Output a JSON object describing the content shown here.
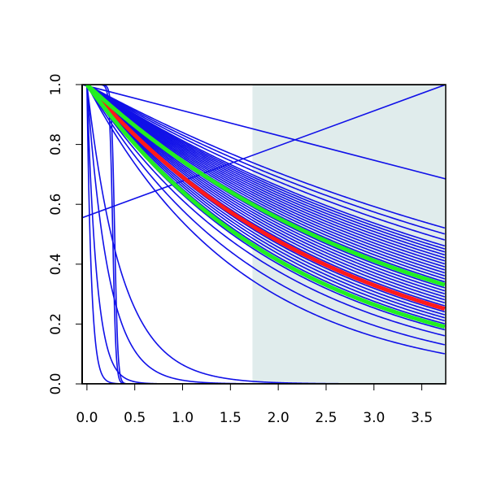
{
  "chart_data": {
    "type": "line",
    "title": "",
    "xlabel": "",
    "ylabel": "",
    "xlim": [
      -0.05,
      3.75
    ],
    "ylim": [
      0.0,
      1.0
    ],
    "x_ticks": [
      {
        "value": 0.0,
        "label": "0.0"
      },
      {
        "value": 0.5,
        "label": "0.5"
      },
      {
        "value": 1.0,
        "label": "1.0"
      },
      {
        "value": 1.5,
        "label": "1.5"
      },
      {
        "value": 2.0,
        "label": "2.0"
      },
      {
        "value": 2.5,
        "label": "2.5"
      },
      {
        "value": 3.0,
        "label": "3.0"
      },
      {
        "value": 3.5,
        "label": "3.5"
      }
    ],
    "y_ticks": [
      {
        "value": 0.0,
        "label": "0.0"
      },
      {
        "value": 0.2,
        "label": "0.2"
      },
      {
        "value": 0.4,
        "label": "0.4"
      },
      {
        "value": 0.6,
        "label": "0.6"
      },
      {
        "value": 0.8,
        "label": "0.8"
      },
      {
        "value": 1.0,
        "label": "1.0"
      }
    ],
    "shaded_region": {
      "x_start": 1.73,
      "x_end": 3.75,
      "color": "#e0ecec"
    },
    "grid": false,
    "legend": "none",
    "colors": {
      "ensemble": "#1010e8",
      "median": "#ff1a1a",
      "bounds": "#22ee22"
    },
    "ensemble_exponential_end_values": [
      0.1,
      0.13,
      0.16,
      0.18,
      0.19,
      0.2,
      0.21,
      0.22,
      0.23,
      0.24,
      0.25,
      0.26,
      0.27,
      0.28,
      0.29,
      0.3,
      0.31,
      0.32,
      0.33,
      0.34,
      0.35,
      0.36,
      0.37,
      0.38,
      0.39,
      0.4,
      0.41,
      0.42,
      0.43,
      0.44,
      0.45,
      0.46,
      0.48,
      0.5,
      0.52
    ],
    "ensemble_fast_decay_rates": [
      40,
      18,
      8,
      5
    ],
    "ensemble_step_drops": [
      0.25,
      0.27
    ],
    "ensemble_straight_lines": [
      {
        "name": "declining",
        "x": [
          -0.05,
          3.75
        ],
        "y": [
          1.0,
          0.685
        ]
      },
      {
        "name": "rising",
        "x": [
          -0.05,
          3.75
        ],
        "y": [
          0.555,
          1.0
        ]
      },
      {
        "name": "flat-top",
        "x": [
          -0.05,
          3.75
        ],
        "y": [
          1.0,
          1.0
        ]
      },
      {
        "name": "flat-bottom",
        "x": [
          -0.05,
          3.75
        ],
        "y": [
          0.0,
          0.0
        ]
      }
    ],
    "series": [
      {
        "role": "median",
        "end_value": 0.25
      },
      {
        "role": "upper-bound",
        "end_value": 0.33
      },
      {
        "role": "lower-bound",
        "end_value": 0.19
      }
    ]
  }
}
